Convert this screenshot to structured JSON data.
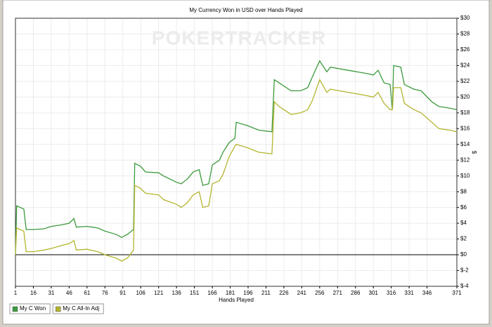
{
  "chart_data": {
    "type": "line",
    "title": "My Currency Won in USD over Hands Played",
    "watermark": "POKERTRACKER",
    "x_label": "Hands Played",
    "y_label": "$",
    "x": [
      1,
      2,
      8,
      10,
      16,
      25,
      31,
      40,
      46,
      50,
      52,
      61,
      70,
      76,
      85,
      90,
      95,
      100,
      101,
      106,
      110,
      121,
      125,
      136,
      140,
      145,
      150,
      155,
      158,
      163,
      166,
      172,
      175,
      180,
      185,
      186,
      195,
      205,
      216,
      218,
      222,
      226,
      232,
      240,
      246,
      250,
      256,
      262,
      265,
      280,
      295,
      301,
      305,
      310,
      315,
      317,
      318,
      324,
      327,
      335,
      341,
      350,
      356,
      365,
      371
    ],
    "series": [
      {
        "name": "My C Won",
        "color": "#3c9a3c",
        "values": [
          0,
          6.2,
          5.8,
          3.2,
          3.2,
          3.3,
          3.6,
          3.8,
          4.0,
          4.6,
          3.5,
          3.6,
          3.4,
          3.0,
          2.6,
          2.2,
          2.6,
          3.2,
          11.6,
          11.2,
          10.5,
          10.4,
          10.0,
          9.2,
          9.0,
          9.6,
          10.5,
          10.8,
          8.8,
          9.0,
          11.4,
          12.0,
          13.0,
          14.2,
          14.8,
          16.8,
          16.4,
          15.8,
          15.6,
          22.2,
          21.8,
          21.4,
          20.8,
          20.8,
          21.2,
          22.6,
          24.6,
          23.2,
          23.8,
          23.4,
          23.0,
          22.8,
          23.4,
          21.8,
          21.6,
          18.4,
          24.0,
          23.8,
          21.6,
          21.0,
          20.8,
          19.4,
          18.8,
          18.6,
          18.4
        ]
      },
      {
        "name": "My C All-In Adj",
        "color": "#b4b42e",
        "values": [
          0,
          3.4,
          3.0,
          0.4,
          0.4,
          0.6,
          0.8,
          1.2,
          1.4,
          1.8,
          0.6,
          0.7,
          0.4,
          0.0,
          -0.4,
          -0.8,
          -0.4,
          0.6,
          8.8,
          8.4,
          7.8,
          7.6,
          7.0,
          6.4,
          6.0,
          6.6,
          7.6,
          8.0,
          6.0,
          6.2,
          9.0,
          9.4,
          10.2,
          12.4,
          13.8,
          14.0,
          13.6,
          13.0,
          12.8,
          19.4,
          18.8,
          18.4,
          17.8,
          18.0,
          18.4,
          19.6,
          22.2,
          20.6,
          21.0,
          20.6,
          20.2,
          20.0,
          20.6,
          19.2,
          18.4,
          18.4,
          21.2,
          21.2,
          19.2,
          18.4,
          18.0,
          16.8,
          16.0,
          15.8,
          15.6
        ]
      }
    ],
    "xlim": [
      1,
      371
    ],
    "xticks": [
      1,
      16,
      31,
      46,
      61,
      76,
      91,
      106,
      121,
      136,
      151,
      166,
      181,
      196,
      211,
      226,
      241,
      256,
      271,
      286,
      301,
      316,
      331,
      346,
      371
    ],
    "ylim": [
      -4,
      30
    ],
    "yticks": [
      {
        "value": -4,
        "label": "$-4"
      },
      {
        "value": -2,
        "label": "$-2"
      },
      {
        "value": 0,
        "label": "$0"
      },
      {
        "value": 2,
        "label": "$2"
      },
      {
        "value": 4,
        "label": "$4"
      },
      {
        "value": 6,
        "label": "$6"
      },
      {
        "value": 8,
        "label": "$8"
      },
      {
        "value": 10,
        "label": "$10"
      },
      {
        "value": 12,
        "label": "$12"
      },
      {
        "value": 14,
        "label": "$14"
      },
      {
        "value": 16,
        "label": "$16"
      },
      {
        "value": 18,
        "label": "$18"
      },
      {
        "value": 20,
        "label": "$20"
      },
      {
        "value": 22,
        "label": "$22"
      },
      {
        "value": 24,
        "label": "$24"
      },
      {
        "value": 26,
        "label": "$26"
      },
      {
        "value": 28,
        "label": "$28"
      },
      {
        "value": 30,
        "label": "$30"
      }
    ],
    "grid": true,
    "legend": "bottom-left"
  }
}
